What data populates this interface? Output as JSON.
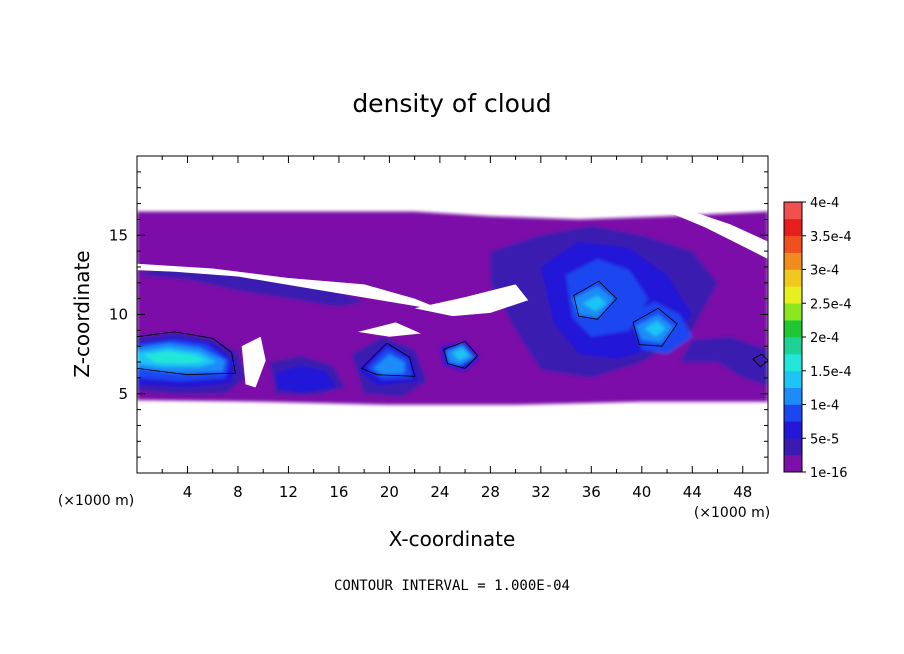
{
  "chart_data": {
    "type": "heatmap",
    "title": "density of cloud",
    "xlabel": "X-coordinate",
    "ylabel": "Z-coordinate",
    "x_unit_label": "(×1000 m)",
    "y_unit_label": "(×1000 m)",
    "xlim": [
      0,
      50
    ],
    "ylim": [
      0,
      20
    ],
    "x_ticks": [
      4,
      8,
      12,
      16,
      20,
      24,
      28,
      32,
      36,
      40,
      44,
      48
    ],
    "y_ticks": [
      5,
      10,
      15
    ],
    "contour_interval_text": "CONTOUR INTERVAL = 1.000E-04",
    "colorbar": {
      "levels": [
        {
          "value": 1e-16,
          "label": "1e-16",
          "color": "#7b0fa8"
        },
        {
          "value": 2.5e-05,
          "label": "",
          "color": "#3a1ab0"
        },
        {
          "value": 5e-05,
          "label": "5e-5",
          "color": "#2318d8"
        },
        {
          "value": 7.5e-05,
          "label": "",
          "color": "#1e46f0"
        },
        {
          "value": 0.0001,
          "label": "1e-4",
          "color": "#1e8cf8"
        },
        {
          "value": 0.000125,
          "label": "",
          "color": "#1ec4f4"
        },
        {
          "value": 0.00015,
          "label": "1.5e-4",
          "color": "#22e6d8"
        },
        {
          "value": 0.000175,
          "label": "",
          "color": "#1ed296"
        },
        {
          "value": 0.0002,
          "label": "2e-4",
          "color": "#1ec832"
        },
        {
          "value": 0.000225,
          "label": "",
          "color": "#8ce61e"
        },
        {
          "value": 0.00025,
          "label": "2.5e-4",
          "color": "#e6f01e"
        },
        {
          "value": 0.000275,
          "label": "",
          "color": "#f0c81e"
        },
        {
          "value": 0.0003,
          "label": "3e-4",
          "color": "#f08c1e"
        },
        {
          "value": 0.000325,
          "label": "",
          "color": "#f0501e"
        },
        {
          "value": 0.00035,
          "label": "3.5e-4",
          "color": "#e61e1e"
        },
        {
          "value": 0.000375,
          "label": "",
          "color": "#f05050"
        },
        {
          "value": 0.0004,
          "label": "4e-4",
          "color": "#f08c8c"
        }
      ]
    },
    "cloud_regions": [
      {
        "level": 0,
        "points": [
          [
            0,
            16.5
          ],
          [
            22,
            16.5
          ],
          [
            28,
            16.2
          ],
          [
            35,
            16
          ],
          [
            42,
            16.2
          ],
          [
            50,
            16.5
          ],
          [
            50,
            4.5
          ],
          [
            40,
            4.5
          ],
          [
            30,
            4.3
          ],
          [
            20,
            4.3
          ],
          [
            10,
            4.5
          ],
          [
            0,
            4.6
          ]
        ]
      },
      {
        "level": 1,
        "points": [
          [
            0,
            12.5
          ],
          [
            4,
            12.2
          ],
          [
            8,
            11.5
          ],
          [
            12,
            11
          ],
          [
            16,
            10.5
          ],
          [
            18,
            10.8
          ],
          [
            14,
            12
          ],
          [
            8,
            12.5
          ],
          [
            2,
            13
          ]
        ]
      },
      {
        "level": 1,
        "points": [
          [
            28,
            14
          ],
          [
            32,
            15
          ],
          [
            36,
            15.6
          ],
          [
            40,
            15
          ],
          [
            44,
            14
          ],
          [
            46,
            12
          ],
          [
            44,
            9
          ],
          [
            40,
            7
          ],
          [
            36,
            6
          ],
          [
            32,
            6.5
          ],
          [
            30,
            9
          ],
          [
            28,
            12
          ]
        ]
      },
      {
        "level": 1,
        "points": [
          [
            0,
            8.6
          ],
          [
            3,
            8.9
          ],
          [
            6,
            8.5
          ],
          [
            8,
            7.6
          ],
          [
            8.6,
            6
          ],
          [
            7,
            5
          ],
          [
            3,
            5
          ],
          [
            0,
            5.2
          ]
        ]
      },
      {
        "level": 1,
        "points": [
          [
            10.5,
            7
          ],
          [
            13,
            7.4
          ],
          [
            15.5,
            6.8
          ],
          [
            16.5,
            5.4
          ],
          [
            14,
            4.9
          ],
          [
            11,
            5
          ]
        ]
      },
      {
        "level": 1,
        "points": [
          [
            17,
            7.5
          ],
          [
            19.5,
            8.6
          ],
          [
            22,
            7.8
          ],
          [
            23,
            5.8
          ],
          [
            21,
            4.8
          ],
          [
            18,
            5
          ]
        ]
      },
      {
        "level": 1,
        "points": [
          [
            43,
            7
          ],
          [
            46,
            7
          ],
          [
            48,
            6
          ],
          [
            50,
            5.5
          ],
          [
            50,
            7.8
          ],
          [
            47,
            8.6
          ],
          [
            44,
            8.4
          ]
        ]
      },
      {
        "level": 2,
        "points": [
          [
            32,
            13
          ],
          [
            35,
            14.6
          ],
          [
            39,
            14.2
          ],
          [
            42,
            12.5
          ],
          [
            44,
            10
          ],
          [
            42,
            8
          ],
          [
            38,
            7.2
          ],
          [
            35,
            7.5
          ],
          [
            33,
            9.5
          ]
        ]
      },
      {
        "level": 2,
        "points": [
          [
            0,
            8.2
          ],
          [
            3,
            8.6
          ],
          [
            6,
            8.2
          ],
          [
            7.8,
            7
          ],
          [
            7.5,
            5.7
          ],
          [
            4,
            5.4
          ],
          [
            0,
            5.6
          ]
        ]
      },
      {
        "level": 2,
        "points": [
          [
            11,
            6.3
          ],
          [
            13,
            6.8
          ],
          [
            15,
            6.4
          ],
          [
            15.8,
            5.4
          ],
          [
            13,
            5.1
          ],
          [
            11.2,
            5.3
          ]
        ]
      },
      {
        "level": 2,
        "points": [
          [
            17.6,
            6.5
          ],
          [
            19.8,
            8.2
          ],
          [
            21.8,
            7.3
          ],
          [
            22.3,
            5.8
          ],
          [
            19,
            5.5
          ]
        ]
      },
      {
        "level": 2,
        "points": [
          [
            24,
            8
          ],
          [
            26,
            8.3
          ],
          [
            27.2,
            7.3
          ],
          [
            26,
            6.4
          ],
          [
            24.3,
            6.8
          ]
        ]
      },
      {
        "level": 3,
        "points": [
          [
            34,
            12.5
          ],
          [
            36.5,
            13.5
          ],
          [
            39,
            12.8
          ],
          [
            40.5,
            11
          ],
          [
            39,
            9
          ],
          [
            36,
            8.6
          ],
          [
            34.5,
            9.8
          ]
        ]
      },
      {
        "level": 3,
        "points": [
          [
            39,
            10
          ],
          [
            41,
            10.8
          ],
          [
            43,
            10
          ],
          [
            44,
            8.6
          ],
          [
            42,
            7.5
          ],
          [
            40,
            7.8
          ]
        ]
      },
      {
        "level": 3,
        "points": [
          [
            0,
            8.1
          ],
          [
            3,
            8.4
          ],
          [
            5.5,
            8.1
          ],
          [
            7.3,
            7.1
          ],
          [
            7,
            6
          ],
          [
            3.5,
            5.8
          ],
          [
            0,
            6
          ]
        ]
      },
      {
        "level": 3,
        "points": [
          [
            18.2,
            6.6
          ],
          [
            19.8,
            7.9
          ],
          [
            21.5,
            7.2
          ],
          [
            21.8,
            6
          ],
          [
            19.4,
            5.9
          ]
        ]
      },
      {
        "level": 4,
        "points": [
          [
            0,
            7.9
          ],
          [
            2.5,
            8.2
          ],
          [
            5,
            7.9
          ],
          [
            7,
            7.1
          ],
          [
            6.8,
            6.4
          ],
          [
            3,
            6.3
          ],
          [
            0,
            6.6
          ]
        ]
      },
      {
        "level": 4,
        "points": [
          [
            34.5,
            11
          ],
          [
            36.5,
            11.8
          ],
          [
            37.8,
            11
          ],
          [
            36.5,
            9.8
          ],
          [
            35,
            10
          ]
        ]
      },
      {
        "level": 4,
        "points": [
          [
            39.5,
            9.3
          ],
          [
            41.3,
            10
          ],
          [
            42.5,
            9.2
          ],
          [
            41.5,
            8.2
          ],
          [
            40,
            8.4
          ]
        ]
      },
      {
        "level": 4,
        "points": [
          [
            18.7,
            6.6
          ],
          [
            20,
            7.5
          ],
          [
            21.2,
            7
          ],
          [
            21.2,
            6.3
          ],
          [
            19.5,
            6.2
          ]
        ]
      },
      {
        "level": 4,
        "points": [
          [
            24.5,
            7.7
          ],
          [
            25.8,
            8.1
          ],
          [
            26.7,
            7.3
          ],
          [
            25.6,
            6.8
          ],
          [
            24.7,
            7
          ]
        ]
      },
      {
        "level": 5,
        "points": [
          [
            0,
            7.6
          ],
          [
            2.5,
            7.9
          ],
          [
            5,
            7.6
          ],
          [
            6.3,
            7
          ],
          [
            5,
            6.7
          ],
          [
            2,
            6.7
          ],
          [
            0,
            6.9
          ]
        ]
      },
      {
        "level": 5,
        "points": [
          [
            35.3,
            10.7
          ],
          [
            36.5,
            11.2
          ],
          [
            37.2,
            10.7
          ],
          [
            36.3,
            10.2
          ]
        ]
      },
      {
        "level": 5,
        "points": [
          [
            40.2,
            9.1
          ],
          [
            41.2,
            9.6
          ],
          [
            41.9,
            9.1
          ],
          [
            41.1,
            8.6
          ]
        ]
      },
      {
        "level": 5,
        "points": [
          [
            25,
            7.6
          ],
          [
            25.8,
            7.9
          ],
          [
            26.3,
            7.4
          ],
          [
            25.5,
            7.1
          ]
        ]
      },
      {
        "level": 6,
        "points": [
          [
            0.5,
            7.45
          ],
          [
            2.5,
            7.7
          ],
          [
            4.5,
            7.45
          ],
          [
            5.5,
            7.05
          ],
          [
            4,
            6.9
          ],
          [
            1.5,
            6.95
          ]
        ]
      }
    ],
    "clear_gaps": [
      {
        "points": [
          [
            0,
            13.2
          ],
          [
            6,
            12.9
          ],
          [
            12,
            12.3
          ],
          [
            18,
            11.9
          ],
          [
            22,
            11
          ],
          [
            24.5,
            10.2
          ],
          [
            20,
            10.8
          ],
          [
            14,
            11.6
          ],
          [
            8,
            12.4
          ],
          [
            3,
            12.7
          ],
          [
            0,
            12.8
          ]
        ]
      },
      {
        "points": [
          [
            42,
            16.5
          ],
          [
            45,
            15.5
          ],
          [
            48,
            14.3
          ],
          [
            50,
            13.5
          ],
          [
            50,
            14.6
          ],
          [
            47,
            15.7
          ],
          [
            44,
            16.5
          ]
        ]
      },
      {
        "points": [
          [
            22,
            10.4
          ],
          [
            26,
            11.1
          ],
          [
            30,
            11.9
          ],
          [
            31,
            10.9
          ],
          [
            28,
            10.1
          ],
          [
            25,
            9.9
          ]
        ]
      },
      {
        "points": [
          [
            17.5,
            8.9
          ],
          [
            20.5,
            9.5
          ],
          [
            22.5,
            8.8
          ],
          [
            20,
            8.6
          ]
        ]
      },
      {
        "points": [
          [
            8.3,
            8
          ],
          [
            9.8,
            8.6
          ],
          [
            10.2,
            7.1
          ],
          [
            9.4,
            5.4
          ],
          [
            8.6,
            5.6
          ]
        ]
      }
    ],
    "contour_lines": [
      {
        "points": [
          [
            0,
            8.6
          ],
          [
            3,
            8.9
          ],
          [
            6,
            8.5
          ],
          [
            7.5,
            7.6
          ],
          [
            7.8,
            6.3
          ],
          [
            4,
            6.2
          ],
          [
            0,
            6.6
          ]
        ]
      },
      {
        "points": [
          [
            17.8,
            6.6
          ],
          [
            19.8,
            8.2
          ],
          [
            21.6,
            7.3
          ],
          [
            22,
            6.1
          ],
          [
            19,
            6.2
          ]
        ]
      },
      {
        "points": [
          [
            24.3,
            7.8
          ],
          [
            26,
            8.3
          ],
          [
            27,
            7.4
          ],
          [
            26,
            6.6
          ],
          [
            24.6,
            6.9
          ]
        ]
      },
      {
        "points": [
          [
            34.6,
            11.2
          ],
          [
            36.6,
            12.1
          ],
          [
            38,
            11
          ],
          [
            36.5,
            9.7
          ],
          [
            35,
            9.9
          ]
        ]
      },
      {
        "points": [
          [
            39.3,
            9.5
          ],
          [
            41.3,
            10.4
          ],
          [
            42.8,
            9.4
          ],
          [
            41.6,
            8
          ],
          [
            39.8,
            8.1
          ]
        ]
      },
      {
        "points": [
          [
            48.8,
            7.2
          ],
          [
            49.5,
            7.5
          ],
          [
            50,
            7.1
          ],
          [
            49.4,
            6.7
          ]
        ]
      }
    ]
  }
}
